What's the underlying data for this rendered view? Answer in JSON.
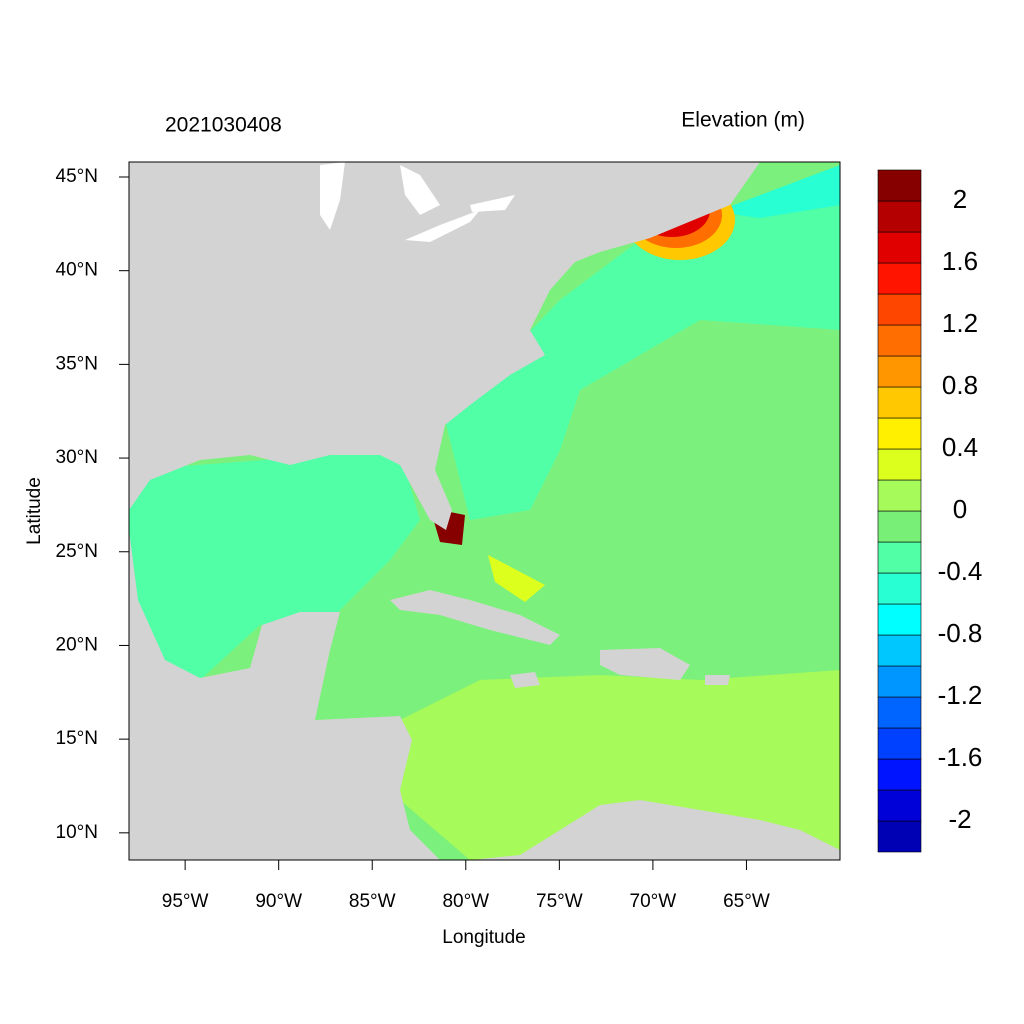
{
  "chart_data": {
    "type": "map",
    "title": "2021030408",
    "colorbar_title": "Elevation (m)",
    "xlabel": "Longitude",
    "ylabel": "Latitude",
    "xlim": [
      -98,
      -60
    ],
    "ylim": [
      8.55,
      45.8
    ],
    "xticks": [
      {
        "value": -95,
        "label": "95°W"
      },
      {
        "value": -90,
        "label": "90°W"
      },
      {
        "value": -85,
        "label": "85°W"
      },
      {
        "value": -80,
        "label": "80°W"
      },
      {
        "value": -75,
        "label": "75°W"
      },
      {
        "value": -70,
        "label": "70°W"
      },
      {
        "value": -65,
        "label": "65°W"
      }
    ],
    "yticks": [
      {
        "value": 10,
        "label": "10°N"
      },
      {
        "value": 15,
        "label": "15°N"
      },
      {
        "value": 20,
        "label": "20°N"
      },
      {
        "value": 25,
        "label": "25°N"
      },
      {
        "value": 30,
        "label": "30°N"
      },
      {
        "value": 35,
        "label": "35°N"
      },
      {
        "value": 40,
        "label": "40°N"
      },
      {
        "value": 45,
        "label": "45°N"
      }
    ],
    "colorbar": {
      "lim": [
        -2.2,
        2.2
      ],
      "ticks": [
        -2,
        -1.6,
        -1.2,
        -0.8,
        -0.4,
        0,
        0.4,
        0.8,
        1.2,
        1.6,
        2
      ],
      "colors": [
        "#0000b4",
        "#0000d8",
        "#0014ff",
        "#0040ff",
        "#0064ff",
        "#0096ff",
        "#00c8ff",
        "#00ffff",
        "#28ffd2",
        "#50ffa6",
        "#78f078",
        "#a6fa5a",
        "#dcff1e",
        "#fff000",
        "#ffc800",
        "#ff9600",
        "#ff6e00",
        "#ff4600",
        "#ff1400",
        "#e10000",
        "#b40000",
        "#870000"
      ]
    }
  }
}
